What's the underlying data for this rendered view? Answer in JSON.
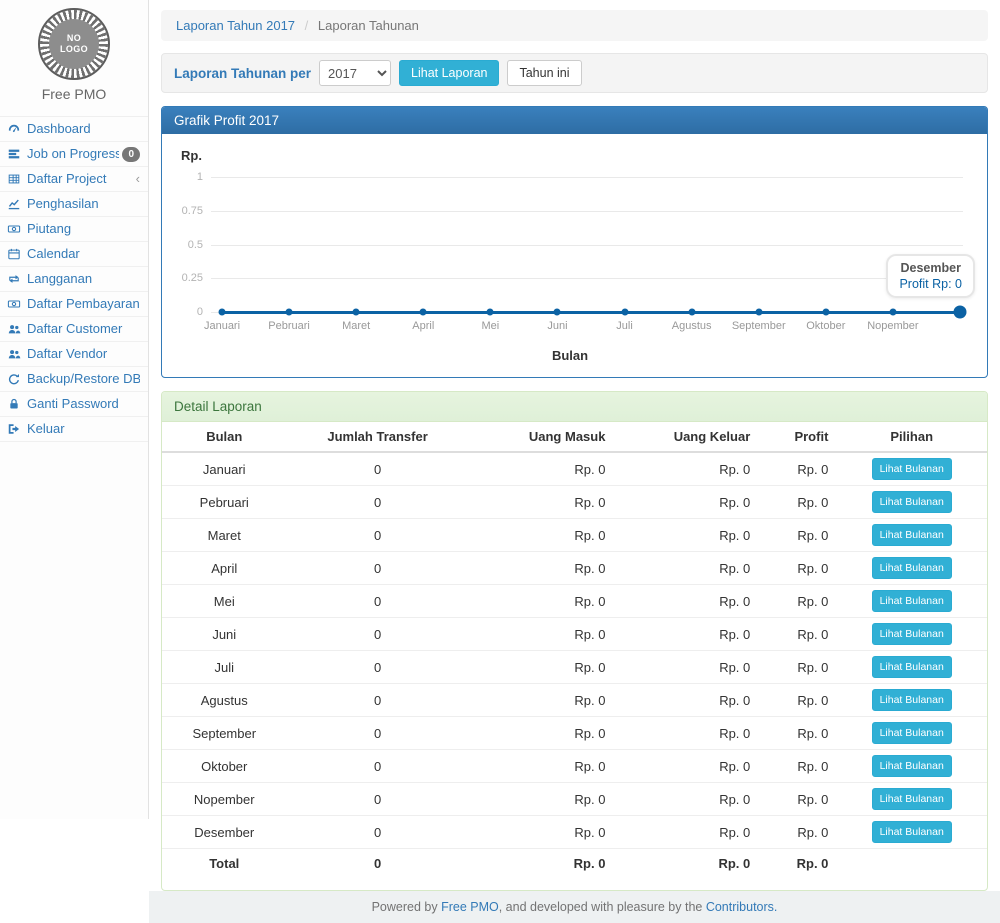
{
  "sidebar": {
    "logo_text": "NO LOGO",
    "brand": "Free PMO",
    "items": [
      {
        "label": "Dashboard",
        "icon": "dashboard-icon"
      },
      {
        "label": "Job on Progress",
        "icon": "tasks-icon",
        "badge": "0"
      },
      {
        "label": "Daftar Project",
        "icon": "table-icon",
        "chevron": true
      },
      {
        "label": "Penghasilan",
        "icon": "line-chart-icon"
      },
      {
        "label": "Piutang",
        "icon": "money-icon"
      },
      {
        "label": "Calendar",
        "icon": "calendar-icon"
      },
      {
        "label": "Langganan",
        "icon": "retweet-icon"
      },
      {
        "label": "Daftar Pembayaran",
        "icon": "money-icon"
      },
      {
        "label": "Daftar Customer",
        "icon": "users-icon"
      },
      {
        "label": "Daftar Vendor",
        "icon": "users-icon"
      },
      {
        "label": "Backup/Restore DB",
        "icon": "refresh-icon"
      },
      {
        "label": "Ganti Password",
        "icon": "lock-icon"
      },
      {
        "label": "Keluar",
        "icon": "sign-out-icon"
      }
    ]
  },
  "breadcrumb": {
    "link": "Laporan Tahun 2017",
    "separator": "/",
    "current": "Laporan Tahunan"
  },
  "filter": {
    "label": "Laporan Tahunan per",
    "year_selected": "2017",
    "submit_label": "Lihat Laporan",
    "this_year_label": "Tahun ini"
  },
  "chart_panel": {
    "title": "Grafik Profit 2017"
  },
  "chart_data": {
    "type": "line",
    "title": "Grafik Profit 2017",
    "x": [
      "Januari",
      "Pebruari",
      "Maret",
      "April",
      "Mei",
      "Juni",
      "Juli",
      "Agustus",
      "September",
      "Oktober",
      "Nopember",
      "Desember"
    ],
    "values": [
      0,
      0,
      0,
      0,
      0,
      0,
      0,
      0,
      0,
      0,
      0,
      0
    ],
    "xlabel": "Bulan",
    "ylabel": "Rp.",
    "yticks": [
      0,
      0.25,
      0.5,
      0.75,
      1
    ],
    "ylim": [
      0,
      1
    ],
    "grid": true,
    "legend": "none",
    "line_color": "#0b62a4",
    "highlight_index": 11,
    "tooltip": {
      "label": "Desember",
      "value": "Profit Rp: 0"
    }
  },
  "detail_panel": {
    "title": "Detail Laporan",
    "table": {
      "headers": [
        "Bulan",
        "Jumlah Transfer",
        "Uang Masuk",
        "Uang Keluar",
        "Profit",
        "Pilihan"
      ],
      "action_label": "Lihat Bulanan",
      "rows": [
        {
          "bulan": "Januari",
          "jumlah": "0",
          "masuk": "Rp. 0",
          "keluar": "Rp. 0",
          "profit": "Rp. 0"
        },
        {
          "bulan": "Pebruari",
          "jumlah": "0",
          "masuk": "Rp. 0",
          "keluar": "Rp. 0",
          "profit": "Rp. 0"
        },
        {
          "bulan": "Maret",
          "jumlah": "0",
          "masuk": "Rp. 0",
          "keluar": "Rp. 0",
          "profit": "Rp. 0"
        },
        {
          "bulan": "April",
          "jumlah": "0",
          "masuk": "Rp. 0",
          "keluar": "Rp. 0",
          "profit": "Rp. 0"
        },
        {
          "bulan": "Mei",
          "jumlah": "0",
          "masuk": "Rp. 0",
          "keluar": "Rp. 0",
          "profit": "Rp. 0"
        },
        {
          "bulan": "Juni",
          "jumlah": "0",
          "masuk": "Rp. 0",
          "keluar": "Rp. 0",
          "profit": "Rp. 0"
        },
        {
          "bulan": "Juli",
          "jumlah": "0",
          "masuk": "Rp. 0",
          "keluar": "Rp. 0",
          "profit": "Rp. 0"
        },
        {
          "bulan": "Agustus",
          "jumlah": "0",
          "masuk": "Rp. 0",
          "keluar": "Rp. 0",
          "profit": "Rp. 0"
        },
        {
          "bulan": "September",
          "jumlah": "0",
          "masuk": "Rp. 0",
          "keluar": "Rp. 0",
          "profit": "Rp. 0"
        },
        {
          "bulan": "Oktober",
          "jumlah": "0",
          "masuk": "Rp. 0",
          "keluar": "Rp. 0",
          "profit": "Rp. 0"
        },
        {
          "bulan": "Nopember",
          "jumlah": "0",
          "masuk": "Rp. 0",
          "keluar": "Rp. 0",
          "profit": "Rp. 0"
        },
        {
          "bulan": "Desember",
          "jumlah": "0",
          "masuk": "Rp. 0",
          "keluar": "Rp. 0",
          "profit": "Rp. 0"
        }
      ],
      "total": {
        "label": "Total",
        "jumlah": "0",
        "masuk": "Rp. 0",
        "keluar": "Rp. 0",
        "profit": "Rp. 0"
      }
    }
  },
  "footer": {
    "text_before": "Powered by ",
    "link1": "Free PMO",
    "text_middle": ", and developed with pleasure by the ",
    "link2": "Contributors."
  },
  "colors": {
    "primary": "#337ab7",
    "panel_heading_blue": "#2e6da4",
    "info_button": "#31b0d5",
    "success_heading_bg": "#dff0d8",
    "success_heading_text": "#3c763d",
    "chart_line": "#0b62a4"
  }
}
